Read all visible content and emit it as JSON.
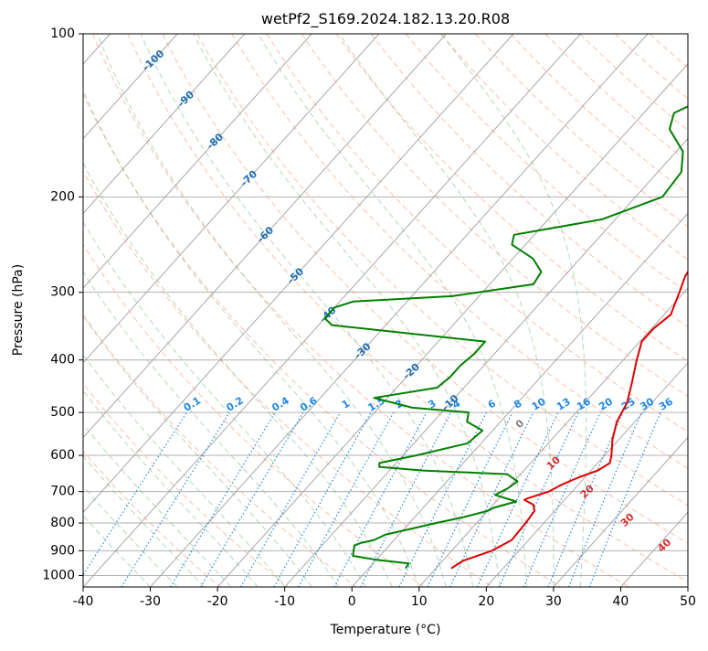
{
  "chart_data": {
    "type": "line",
    "title": "wetPf2_S169.2024.182.13.20.R08",
    "xlabel": "Temperature (°C)",
    "ylabel": "Pressure (hPa)",
    "xlim": [
      -40,
      50
    ],
    "ylim": [
      1050,
      100
    ],
    "y_scale": "log",
    "grid": true,
    "x_ticks": [
      -40,
      -30,
      -20,
      -10,
      0,
      10,
      20,
      30,
      40,
      50
    ],
    "y_ticks": [
      100,
      200,
      300,
      400,
      500,
      600,
      700,
      800,
      900,
      1000
    ],
    "colors": {
      "temperature": "#e00000",
      "dewpoint": "#008000",
      "isotherm": "#999999",
      "dry_adiabat": "#ff8a65",
      "moist_adiabat": "#5aaa5a",
      "mixing_ratio": "#1e88e5",
      "isotherm_label": "#1f6eb0",
      "moist_label": "#d32f2f",
      "zero_label": "#808080"
    },
    "series": [
      {
        "key": "temperature",
        "pressure": [
          970,
          940,
          900,
          860,
          800,
          760,
          740,
          725,
          720,
          700,
          680,
          660,
          640,
          620,
          600,
          560,
          520,
          480,
          440,
          400,
          370,
          350,
          330,
          300,
          280,
          250,
          220,
          200,
          185,
          170,
          150,
          130,
          115,
          105,
          100
        ],
        "temperature": [
          12.3,
          13,
          16,
          17.5,
          17.3,
          17,
          16,
          14,
          14.3,
          16.5,
          17.5,
          19,
          21,
          21.8,
          21,
          19,
          17.3,
          16.3,
          14.3,
          12,
          10.3,
          10.3,
          11,
          9.3,
          8,
          7,
          5,
          3,
          2.5,
          6,
          9,
          8.5,
          7.5,
          9,
          12.5
        ]
      },
      {
        "key": "dewpoint",
        "pressure": [
          970,
          950,
          935,
          920,
          900,
          880,
          870,
          860,
          840,
          820,
          800,
          780,
          760,
          750,
          730,
          710,
          690,
          670,
          650,
          640,
          630,
          620,
          600,
          570,
          540,
          520,
          500,
          490,
          470,
          450,
          430,
          410,
          390,
          370,
          345,
          335,
          320,
          312,
          305,
          290,
          275,
          260,
          245,
          235,
          220,
          200,
          180,
          165,
          150,
          140,
          132,
          125,
          115,
          108,
          100
        ],
        "temperature": [
          5.5,
          5.3,
          0,
          -4,
          -4.6,
          -5.2,
          -4.5,
          -3,
          -2,
          1,
          4,
          7.3,
          10,
          10.5,
          13,
          9,
          10,
          10.5,
          8,
          -5,
          -12,
          -12.5,
          -8,
          -2,
          -1.5,
          -5,
          -6,
          -15,
          -22,
          -14,
          -13.5,
          -13.5,
          -13,
          -13,
          -38,
          -40,
          -40,
          -38,
          -24,
          -13.5,
          -14,
          -17,
          -22,
          -23,
          -12,
          -6,
          -6.5,
          -9,
          -14,
          -15.5,
          -13,
          -9,
          -4,
          -1.5,
          -1.5
        ]
      }
    ],
    "isotherm_labels": [
      -100,
      -90,
      -80,
      -70,
      -60,
      -50,
      -40,
      -30,
      -20,
      -10
    ],
    "mixing_ratio_labels": [
      "0.1",
      "0.2",
      "0.4",
      "0.6",
      "1",
      "1.5",
      "2",
      "3",
      "4",
      "6",
      "8",
      "10",
      "13",
      "16",
      "20",
      "25",
      "30",
      "36"
    ],
    "moist_adiabat_labels": [
      "0",
      "10",
      "20",
      "30",
      "40"
    ]
  }
}
